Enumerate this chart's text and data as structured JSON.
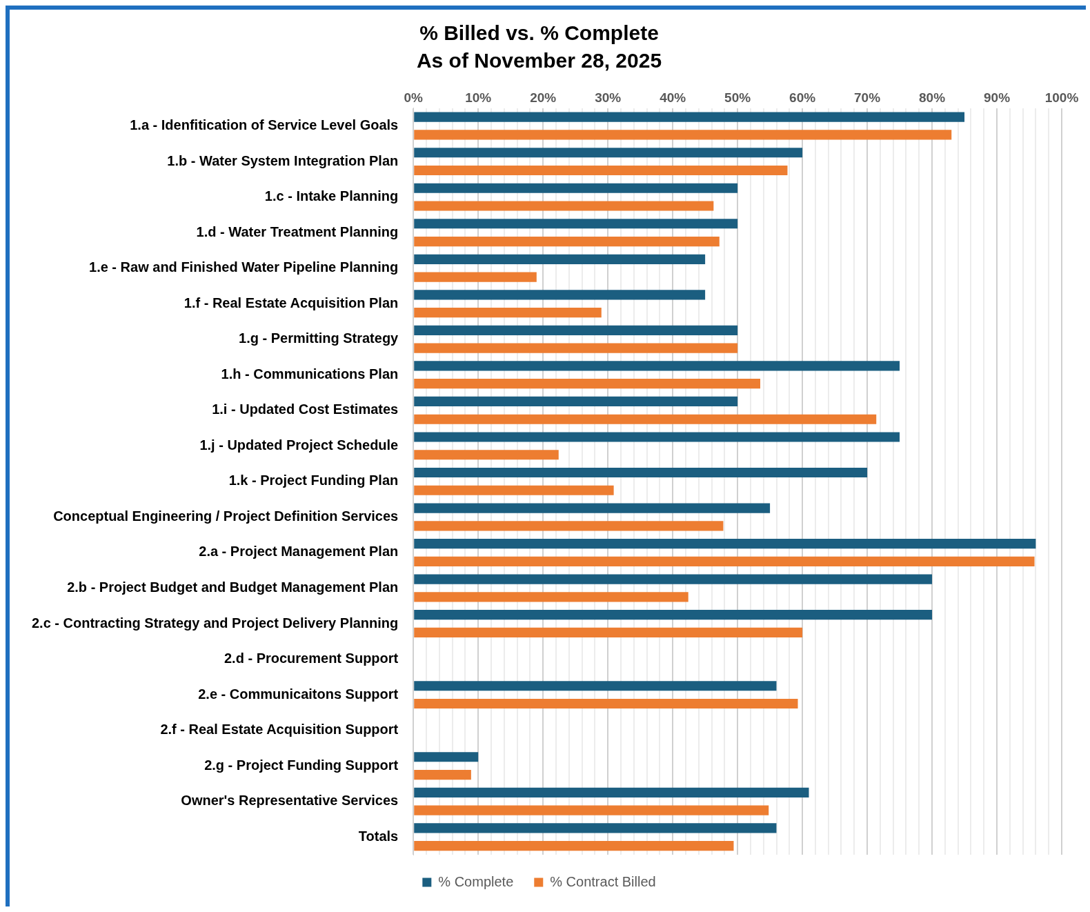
{
  "chart_data": {
    "type": "bar",
    "orientation": "horizontal",
    "title": "% Billed vs. % Complete",
    "subtitle": "As of November 28, 2025",
    "categories": [
      "1.a - Idenfitication of Service Level Goals",
      "1.b - Water System Integration Plan",
      "1.c - Intake Planning",
      "1.d - Water Treatment Planning",
      "1.e - Raw and Finished Water Pipeline Planning",
      "1.f - Real Estate Acquisition Plan",
      "1.g - Permitting Strategy",
      "1.h - Communications Plan",
      "1.i - Updated Cost Estimates",
      "1.j - Updated Project Schedule",
      "1.k - Project Funding Plan",
      "Conceptual Engineering / Project Definition Services",
      "2.a - Project Management Plan",
      "2.b - Project Budget and Budget Management Plan",
      "2.c - Contracting Strategy and Project Delivery Planning",
      "2.d - Procurement Support",
      "2.e - Communicaitons Support",
      "2.f - Real Estate Acquisition Support",
      "2.g - Project Funding Support",
      "Owner's Representative Services",
      "Totals"
    ],
    "series": [
      {
        "name": "% Complete",
        "color": "#1b5e80",
        "values": [
          85,
          60,
          50,
          50,
          45,
          45,
          50,
          75,
          50,
          75,
          70,
          55,
          96,
          80,
          80,
          null,
          56,
          null,
          10,
          61,
          56
        ]
      },
      {
        "name": "% Contract Billed",
        "color": "#ed7d31",
        "values": [
          83,
          57.7,
          46.3,
          47.2,
          19,
          29,
          50,
          53.5,
          71.4,
          22.4,
          30.9,
          47.8,
          95.8,
          42.4,
          60,
          null,
          59.3,
          null,
          8.9,
          54.8,
          49.4
        ]
      }
    ],
    "xlim": [
      0,
      100
    ],
    "xticks": [
      {
        "value": 0,
        "label": "0%"
      },
      {
        "value": 2,
        "label": null
      },
      {
        "value": 4,
        "label": null
      },
      {
        "value": 6,
        "label": null
      },
      {
        "value": 8,
        "label": null
      },
      {
        "value": 10,
        "label": "10%"
      },
      {
        "value": 12,
        "label": null
      },
      {
        "value": 14,
        "label": null
      },
      {
        "value": 16,
        "label": null
      },
      {
        "value": 18,
        "label": null
      },
      {
        "value": 20,
        "label": "20%"
      },
      {
        "value": 22,
        "label": null
      },
      {
        "value": 24,
        "label": null
      },
      {
        "value": 26,
        "label": null
      },
      {
        "value": 28,
        "label": null
      },
      {
        "value": 30,
        "label": "30%"
      },
      {
        "value": 32,
        "label": null
      },
      {
        "value": 34,
        "label": null
      },
      {
        "value": 36,
        "label": null
      },
      {
        "value": 38,
        "label": null
      },
      {
        "value": 40,
        "label": "40%"
      },
      {
        "value": 42,
        "label": null
      },
      {
        "value": 44,
        "label": null
      },
      {
        "value": 46,
        "label": null
      },
      {
        "value": 48,
        "label": null
      },
      {
        "value": 50,
        "label": "50%"
      },
      {
        "value": 52,
        "label": null
      },
      {
        "value": 54,
        "label": null
      },
      {
        "value": 56,
        "label": null
      },
      {
        "value": 58,
        "label": null
      },
      {
        "value": 60,
        "label": "60%"
      },
      {
        "value": 62,
        "label": null
      },
      {
        "value": 64,
        "label": null
      },
      {
        "value": 66,
        "label": null
      },
      {
        "value": 68,
        "label": null
      },
      {
        "value": 70,
        "label": "70%"
      },
      {
        "value": 72,
        "label": null
      },
      {
        "value": 74,
        "label": null
      },
      {
        "value": 76,
        "label": null
      },
      {
        "value": 78,
        "label": null
      },
      {
        "value": 80,
        "label": "80%"
      },
      {
        "value": 82,
        "label": null
      },
      {
        "value": 84,
        "label": null
      },
      {
        "value": 86,
        "label": null
      },
      {
        "value": 88,
        "label": null
      },
      {
        "value": 90,
        "label": "90%"
      },
      {
        "value": 92,
        "label": null
      },
      {
        "value": 94,
        "label": null
      },
      {
        "value": 96,
        "label": null
      },
      {
        "value": 98,
        "label": null
      },
      {
        "value": 100,
        "label": "100%"
      }
    ],
    "grid": "x",
    "legend": "bottom"
  }
}
